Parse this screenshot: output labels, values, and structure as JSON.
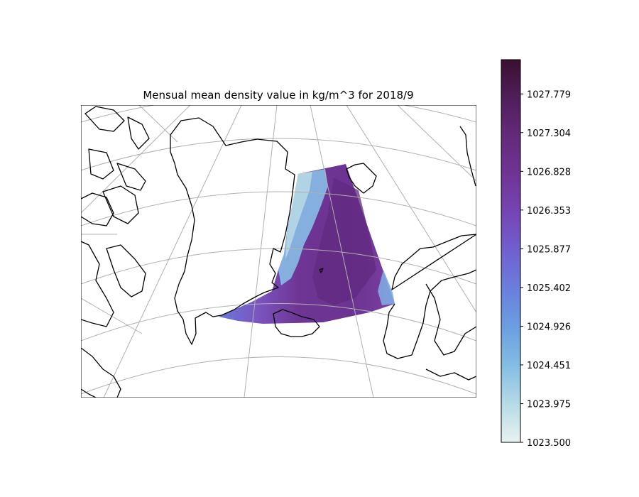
{
  "chart_data": {
    "type": "heatmap",
    "title": "Mensual mean density value in kg/m^3 for 2018/9",
    "colorbar": {
      "colormap": "twilight-purple sequential (light cyan-white to dark purple)",
      "range": [
        1023.5,
        1028.2
      ],
      "ticks": [
        "1023.500",
        "1023.975",
        "1024.451",
        "1024.926",
        "1025.402",
        "1025.877",
        "1026.353",
        "1026.828",
        "1027.304",
        "1027.779"
      ],
      "colors": {
        "low": "#e6f0f0",
        "mid_low": "#7fb8e0",
        "mid": "#6a7de0",
        "mid_high": "#7440a8",
        "high": "#3a1030"
      }
    },
    "map": {
      "region": "North Atlantic / Greenland Sea / Norwegian Sea",
      "projection": "polar stereographic",
      "coastlines": true,
      "graticule": true,
      "data_field_description": "density field between east Greenland and Norway, low density (light) along east Greenland coast, high density (dark purple) in central Greenland Sea / Norwegian Sea"
    }
  }
}
